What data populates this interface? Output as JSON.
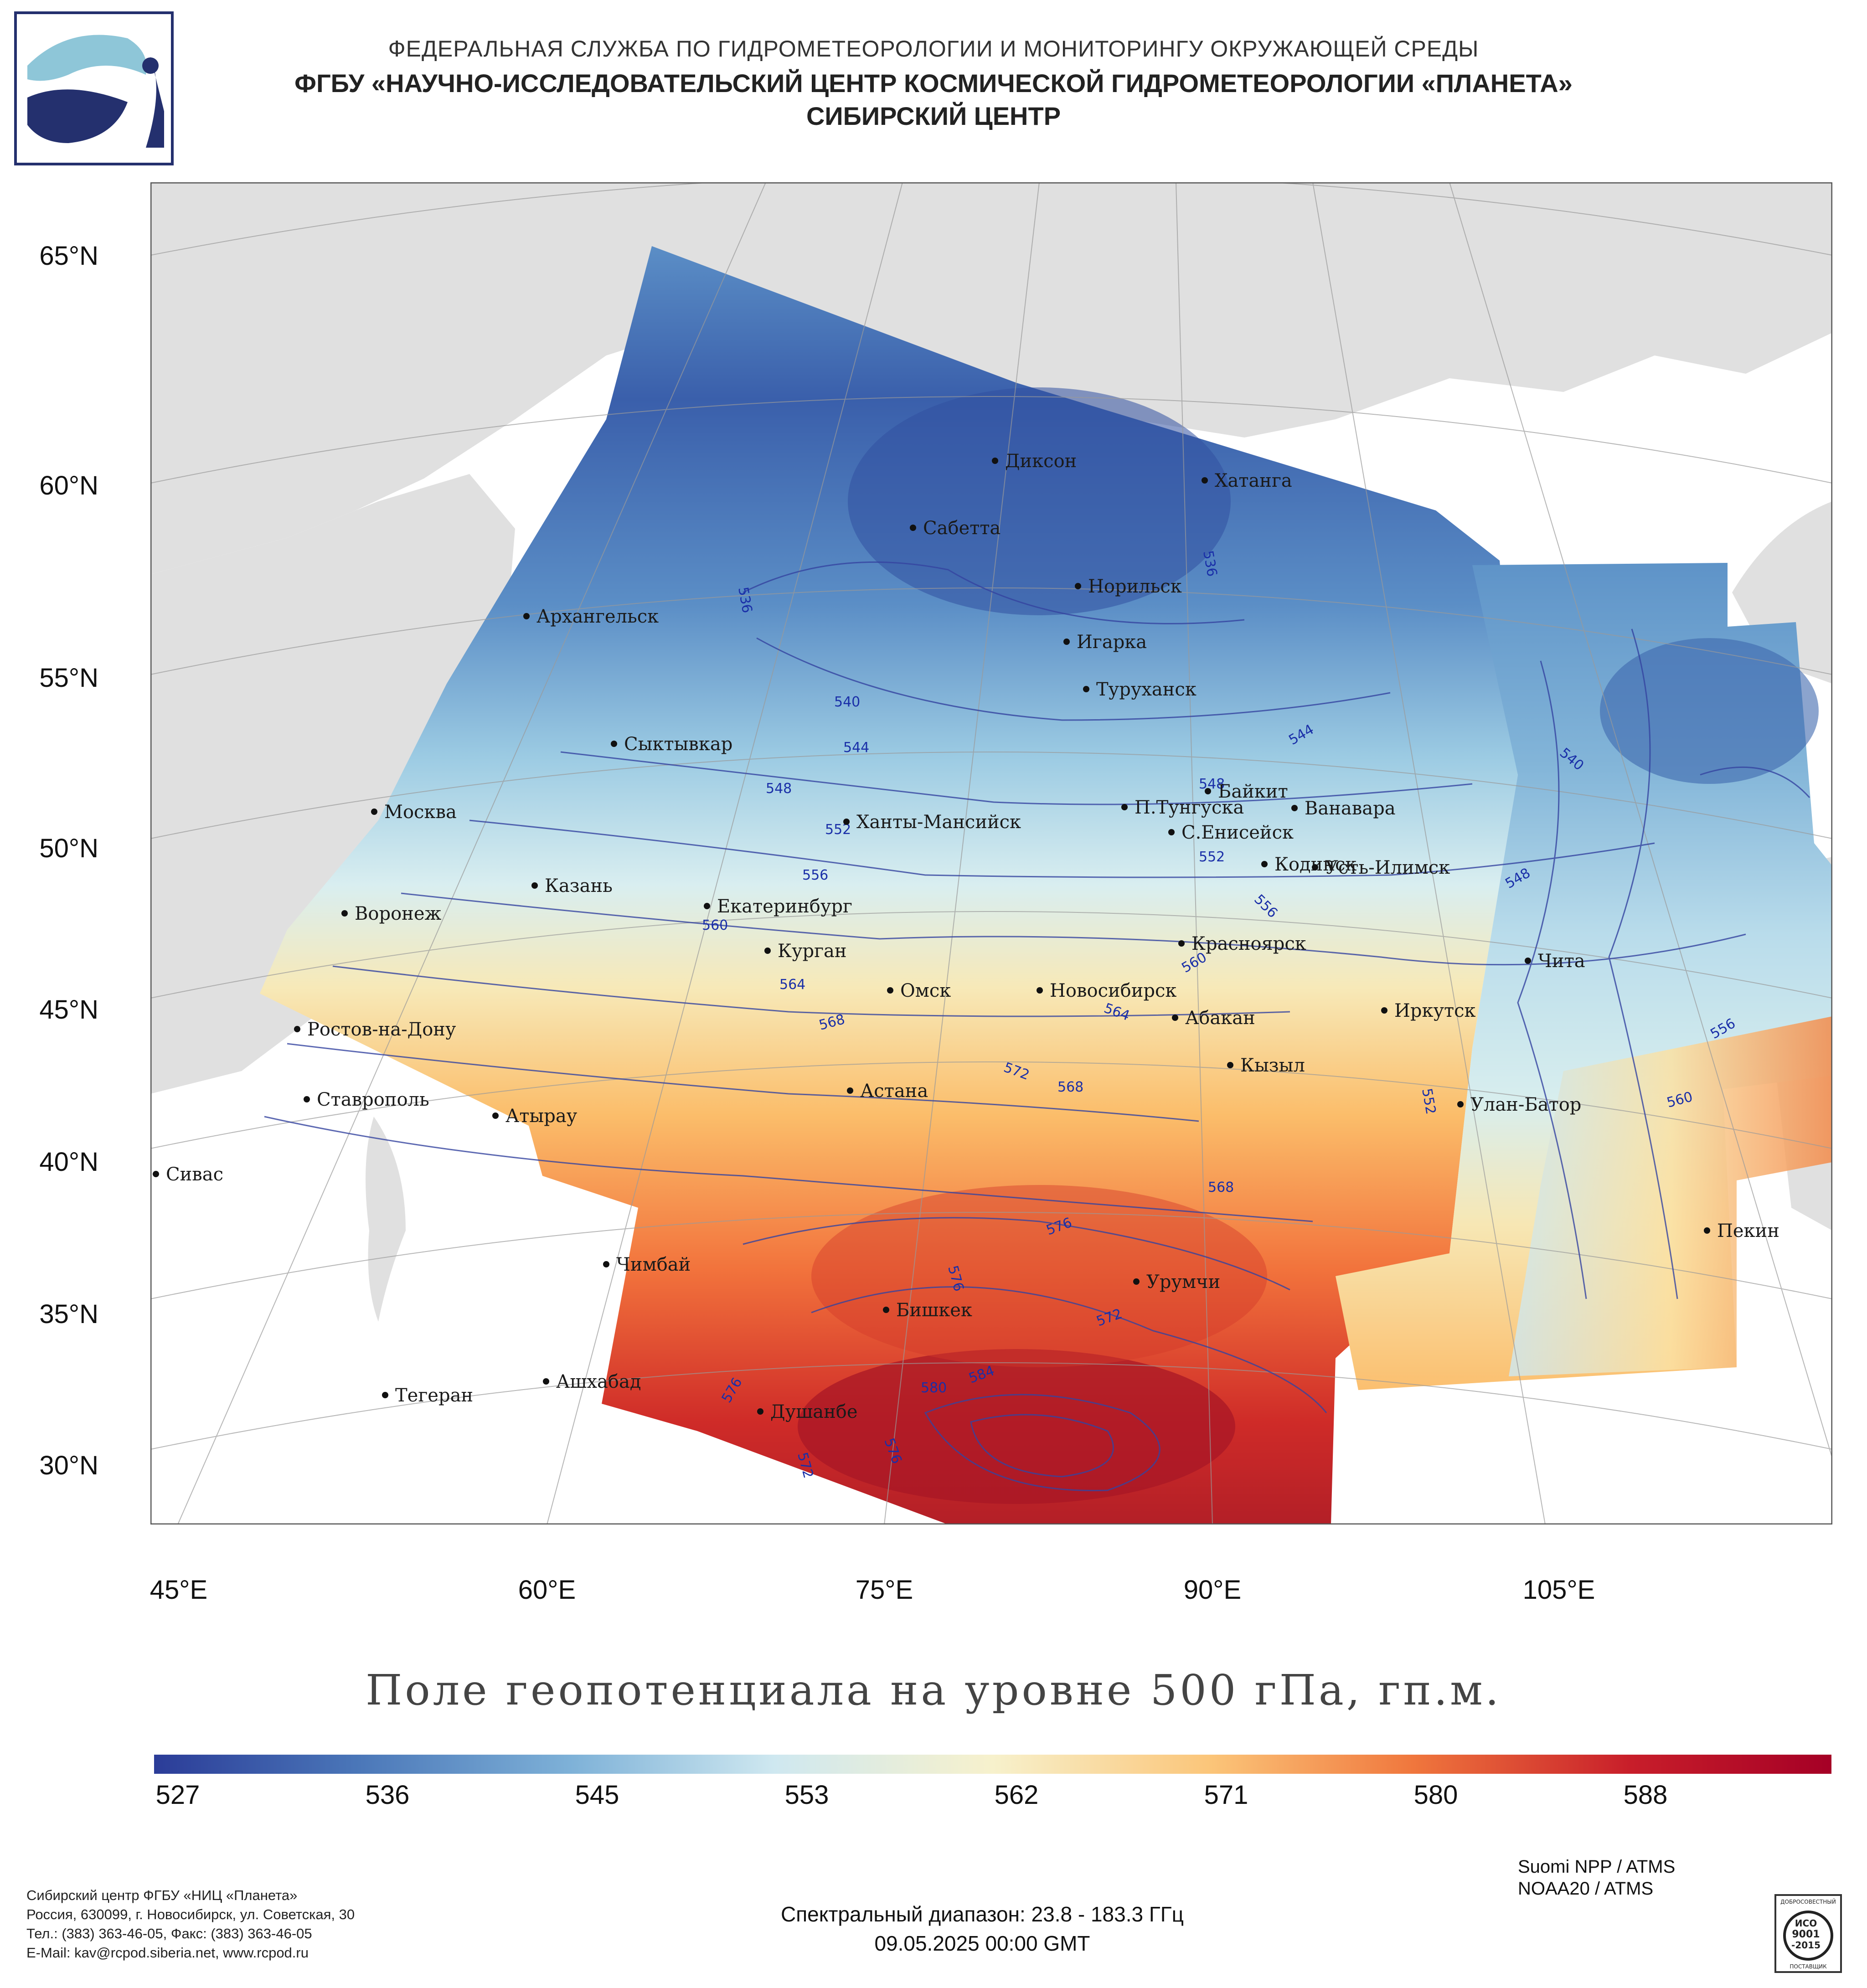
{
  "header": {
    "line1": "ФЕДЕРАЛЬНАЯ СЛУЖБА ПО ГИДРОМЕТЕОРОЛОГИИ И МОНИТОРИНГУ ОКРУЖАЮЩЕЙ СРЕДЫ",
    "line2": "ФГБУ «НАУЧНО-ИССЛЕДОВАТЕЛЬСКИЙ ЦЕНТР КОСМИЧЕСКОЙ ГИДРОМЕТЕОРОЛОГИИ «ПЛАНЕТА»",
    "line3": "СИБИРСКИЙ ЦЕНТР"
  },
  "map": {
    "title": "Поле геопотенциала на уровне 500 гПа, гп.м.",
    "lat_labels": [
      "65°N",
      "60°N",
      "55°N",
      "50°N",
      "45°N",
      "40°N",
      "35°N",
      "30°N"
    ],
    "lon_labels": [
      "45°E",
      "60°E",
      "75°E",
      "90°E",
      "105°E"
    ],
    "cities": [
      "Диксон",
      "Хатанга",
      "Сабетта",
      "Норильск",
      "Архангельск",
      "Игарка",
      "Туруханск",
      "Сыктывкар",
      "Байкит",
      "Москва",
      "П.Тунгуска",
      "Ванавара",
      "Ханты-Мансийск",
      "С.Енисейск",
      "Кодинск",
      "Усть-Илимск",
      "Казань",
      "Екатеринбург",
      "Воронеж",
      "Красноярск",
      "Курган",
      "Чита",
      "Омск",
      "Новосибирск",
      "Ростов-на-Дону",
      "Иркутск",
      "Абакан",
      "Кызыл",
      "Астана",
      "Ставрополь",
      "Улан-Батор",
      "Атырау",
      "Сивас",
      "Пекин",
      "Чимбай",
      "Урумчи",
      "Бишкек",
      "Ашхабад",
      "Тегеран",
      "Душанбе"
    ],
    "contour_labels": [
      "536",
      "536",
      "540",
      "544",
      "548",
      "548",
      "552",
      "552",
      "556",
      "556",
      "560",
      "560",
      "564",
      "564",
      "568",
      "568",
      "568",
      "572",
      "572",
      "572",
      "576",
      "576",
      "576",
      "576",
      "580",
      "584",
      "540",
      "544",
      "548",
      "552",
      "556",
      "560"
    ]
  },
  "colorbar": {
    "labels": [
      "527",
      "536",
      "545",
      "553",
      "562",
      "571",
      "580",
      "588"
    ],
    "colors": [
      "#2b3c98",
      "#4a76b8",
      "#7fb2d8",
      "#cfe8f0",
      "#f7f1cc",
      "#fbc579",
      "#f0773d",
      "#c81e2a",
      "#a50026"
    ]
  },
  "footer": {
    "org": "Сибирский центр ФГБУ «НИЦ «Планета»",
    "address": "Россия, 630099, г. Новосибирск, ул. Советская, 30",
    "phone": "Тел.: (383) 363-46-05, Факс: (383) 363-46-05",
    "email": "E-Mail: kav@rcpod.siberia.net, www.rcpod.ru",
    "sat1": "Suomi NPP / ATMS",
    "sat2": "NOAA20 / ATMS",
    "spectral": "Спектральный диапазон: 23.8 - 183.3 ГГц",
    "datetime": "09.05.2025 00:00 GMT",
    "cert_lines": [
      "ДОБРОСОВЕСТНЫЙ",
      "ИСО",
      "9001",
      "-2015",
      "ПОСТАВЩИК"
    ]
  }
}
